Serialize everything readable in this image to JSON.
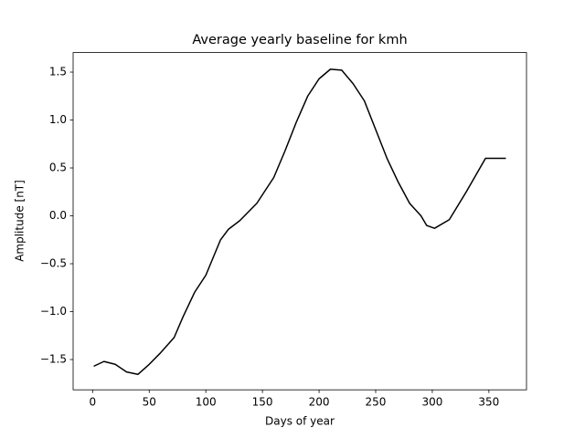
{
  "chart_data": {
    "type": "line",
    "title": "Average yearly baseline for kmh",
    "xlabel": "Days of year",
    "ylabel": "Amplitude [nT]",
    "x": [
      1,
      10,
      20,
      30,
      40,
      50,
      60,
      72,
      80,
      90,
      100,
      113,
      120,
      130,
      145,
      160,
      170,
      180,
      190,
      200,
      210,
      220,
      230,
      240,
      250,
      260,
      270,
      280,
      290,
      295,
      302,
      315,
      330,
      347,
      365
    ],
    "values": [
      -1.57,
      -1.52,
      -1.55,
      -1.63,
      -1.655,
      -1.55,
      -1.43,
      -1.27,
      -1.05,
      -0.8,
      -0.62,
      -0.25,
      -0.14,
      -0.05,
      0.13,
      0.4,
      0.68,
      0.98,
      1.25,
      1.43,
      1.53,
      1.52,
      1.38,
      1.2,
      0.9,
      0.6,
      0.35,
      0.13,
      0.0,
      -0.1,
      -0.13,
      -0.04,
      0.25,
      0.6,
      0.6
    ],
    "color": "#000000",
    "xlim": [
      -17.2,
      383.2
    ],
    "xticks": [
      0,
      50,
      100,
      150,
      200,
      250,
      300,
      350
    ],
    "ylim": [
      -1.816,
      1.704
    ],
    "yticks": [
      {
        "value": -1.5,
        "label": "−1.5"
      },
      {
        "value": -1.0,
        "label": "−1.0"
      },
      {
        "value": -0.5,
        "label": "−0.5"
      },
      {
        "value": 0.0,
        "label": "0.0"
      },
      0.5,
      {
        "value": 1.0,
        "label": "1.0"
      },
      1.5
    ]
  }
}
